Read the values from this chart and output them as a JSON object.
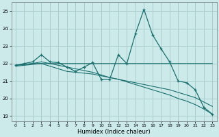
{
  "xlabel": "Humidex (Indice chaleur)",
  "bg_color": "#cceaea",
  "grid_color": "#aacccc",
  "line_color": "#1a6e6e",
  "xlim": [
    -0.5,
    23.5
  ],
  "ylim": [
    18.7,
    25.5
  ],
  "xticks": [
    0,
    1,
    2,
    3,
    4,
    5,
    6,
    7,
    8,
    9,
    10,
    11,
    12,
    13,
    14,
    15,
    16,
    17,
    18,
    19,
    20,
    21,
    22,
    23
  ],
  "yticks": [
    19,
    20,
    21,
    22,
    23,
    24,
    25
  ],
  "series_main_x": [
    0,
    1,
    2,
    3,
    4,
    5,
    6,
    7,
    8,
    9,
    10,
    11,
    12,
    13,
    14,
    15,
    16,
    17,
    18,
    19,
    20,
    21,
    22,
    23
  ],
  "series_main_y": [
    21.9,
    22.0,
    22.1,
    22.5,
    22.1,
    22.05,
    21.8,
    21.55,
    21.8,
    22.05,
    21.1,
    21.1,
    22.5,
    22.0,
    23.7,
    25.1,
    23.65,
    22.85,
    22.1,
    21.0,
    20.9,
    20.5,
    19.5,
    19.1
  ],
  "series_flat_x": [
    0,
    1,
    2,
    3,
    4,
    5,
    6,
    7,
    8,
    9,
    10,
    11,
    12,
    13,
    14,
    15,
    16,
    17,
    18,
    19,
    20,
    21,
    22,
    23
  ],
  "series_flat_y": [
    21.9,
    21.95,
    22.0,
    22.0,
    22.0,
    22.0,
    22.0,
    22.0,
    22.0,
    22.0,
    22.0,
    22.0,
    22.0,
    22.0,
    22.0,
    22.0,
    22.0,
    22.0,
    22.0,
    22.0,
    22.0,
    22.0,
    22.0,
    22.0
  ],
  "series_decline1_x": [
    0,
    1,
    2,
    3,
    4,
    5,
    6,
    7,
    8,
    9,
    10,
    11,
    12,
    13,
    14,
    15,
    16,
    17,
    18,
    19,
    20,
    21,
    22,
    23
  ],
  "series_decline1_y": [
    21.85,
    21.9,
    21.95,
    22.0,
    21.85,
    21.7,
    21.55,
    21.5,
    21.45,
    21.4,
    21.3,
    21.2,
    21.1,
    21.0,
    20.9,
    20.8,
    20.7,
    20.6,
    20.5,
    20.35,
    20.2,
    20.05,
    19.8,
    19.55
  ],
  "series_decline2_x": [
    0,
    1,
    2,
    3,
    4,
    5,
    6,
    7,
    8,
    9,
    10,
    11,
    12,
    13,
    14,
    15,
    16,
    17,
    18,
    19,
    20,
    21,
    22,
    23
  ],
  "series_decline2_y": [
    21.9,
    21.95,
    22.0,
    22.1,
    22.0,
    21.9,
    21.8,
    21.7,
    21.6,
    21.5,
    21.35,
    21.2,
    21.1,
    20.95,
    20.8,
    20.65,
    20.5,
    20.35,
    20.2,
    20.0,
    19.85,
    19.65,
    19.4,
    19.1
  ]
}
